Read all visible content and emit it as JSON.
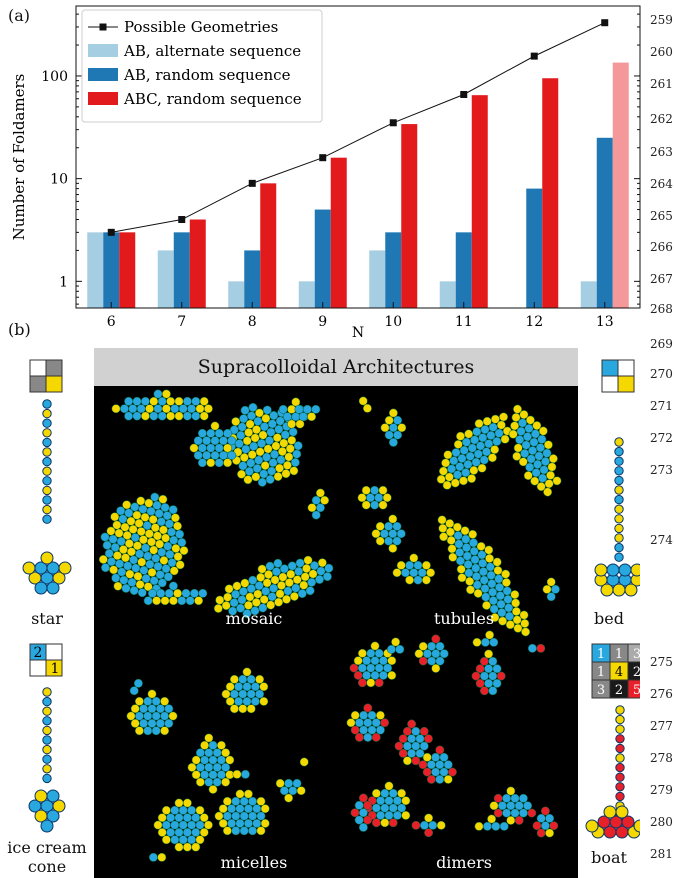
{
  "panel_a_label": "(a)",
  "panel_b_label": "(b)",
  "line_numbers": [
    "259",
    "260",
    "261",
    "262",
    "263",
    "264",
    "265",
    "266",
    "267",
    "268",
    "269",
    "270",
    "271",
    "272",
    "273",
    "274",
    "275",
    "276",
    "277",
    "278",
    "279",
    "280",
    "281"
  ],
  "chart_data": {
    "type": "bar",
    "xlabel": "N",
    "ylabel": "Number of Foldamers",
    "yscale": "log",
    "ylim": [
      0.55,
      480
    ],
    "yticks": [
      {
        "v": 1,
        "label": "1"
      },
      {
        "v": 10,
        "label": "10"
      },
      {
        "v": 100,
        "label": "100"
      }
    ],
    "categories": [
      "6",
      "7",
      "8",
      "9",
      "10",
      "11",
      "12",
      "13"
    ],
    "series": [
      {
        "name": "AB, alternate sequence",
        "color": "#a6cee3",
        "values": [
          3,
          2,
          1,
          1,
          2,
          1,
          null,
          1
        ]
      },
      {
        "name": "AB, random sequence",
        "color": "#1f78b4",
        "values": [
          3,
          3,
          2,
          5,
          3,
          3,
          8,
          25
        ]
      },
      {
        "name": "ABC, random sequence",
        "color": "#e31a1c",
        "values": [
          3,
          4,
          9,
          16,
          34,
          65,
          95,
          135
        ],
        "faded_last_color": "#f4989a"
      }
    ],
    "line": {
      "name": "Possible Geometries",
      "values": [
        3,
        4,
        9,
        16,
        35,
        66,
        156,
        330
      ]
    },
    "legend_position": "top-left"
  },
  "architectures": {
    "header": "Supracolloidal Architectures",
    "panels": [
      {
        "label": "mosaic"
      },
      {
        "label": "tubules"
      },
      {
        "label": "micelles"
      },
      {
        "label": "dimers"
      }
    ]
  },
  "side_items": [
    {
      "label": "star",
      "grid_numbers": []
    },
    {
      "label": "bed",
      "grid_numbers": []
    },
    {
      "label": "ice cream cone",
      "grid_numbers": [
        "2",
        "1"
      ]
    },
    {
      "label": "boat",
      "grid_numbers": [
        "1",
        "1",
        "3",
        "1",
        "4",
        "2",
        "3",
        "2",
        "5"
      ]
    }
  ],
  "colors": {
    "blue": "#29a8e0",
    "yellow": "#f5d800",
    "red": "#e8202a"
  }
}
